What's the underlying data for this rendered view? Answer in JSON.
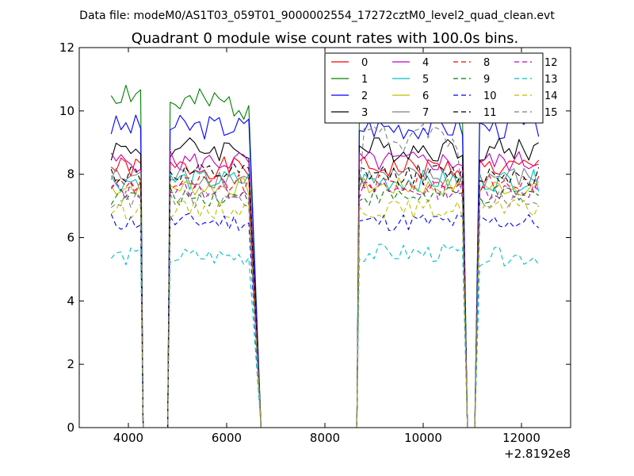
{
  "suptitle": "Data file: modeM0/AS1T03_059T01_9000002554_17272cztM0_level2_quad_clean.evt",
  "chart_data": {
    "type": "line",
    "title": "Quadrant 0 module wise count rates with 100.0s bins.",
    "xlabel": "",
    "ylabel": "",
    "x_offset_label": "+2.8192e8",
    "xlim": [
      3000,
      13000
    ],
    "ylim": [
      0,
      12
    ],
    "xticks": [
      4000,
      6000,
      8000,
      10000,
      12000
    ],
    "xtick_labels": [
      "4000",
      "6000",
      "8000",
      "10000",
      "12000"
    ],
    "yticks": [
      0,
      2,
      4,
      6,
      8,
      10,
      12
    ],
    "ytick_labels": [
      "0",
      "2",
      "4",
      "6",
      "8",
      "10",
      "12"
    ],
    "legend_position": "top-right",
    "legend_columns": 4,
    "segments": [
      [
        3650,
        4250
      ],
      [
        4850,
        6500
      ],
      [
        8700,
        10800
      ],
      [
        11150,
        12400
      ]
    ],
    "gap_points": [
      [
        4300,
        0
      ],
      [
        4800,
        0
      ],
      [
        6700,
        0
      ],
      [
        8650,
        0
      ],
      [
        10900,
        0
      ],
      [
        11050,
        0
      ]
    ],
    "series": [
      {
        "name": "0",
        "color": "#ff0000",
        "dash": "solid",
        "mean": 8.2,
        "amp": 0.35
      },
      {
        "name": "1",
        "color": "#008000",
        "dash": "solid",
        "mean": 10.2,
        "amp": 0.5
      },
      {
        "name": "2",
        "color": "#0000ff",
        "dash": "solid",
        "mean": 9.5,
        "amp": 0.4
      },
      {
        "name": "3",
        "color": "#000000",
        "dash": "solid",
        "mean": 8.8,
        "amp": 0.4
      },
      {
        "name": "4",
        "color": "#bf00bf",
        "dash": "solid",
        "mean": 8.4,
        "amp": 0.35
      },
      {
        "name": "5",
        "color": "#00bfbf",
        "dash": "solid",
        "mean": 7.8,
        "amp": 0.35
      },
      {
        "name": "6",
        "color": "#bfbf00",
        "dash": "solid",
        "mean": 7.6,
        "amp": 0.3
      },
      {
        "name": "7",
        "color": "#808080",
        "dash": "solid",
        "mean": 7.9,
        "amp": 0.35
      },
      {
        "name": "8",
        "color": "#ff0000",
        "dash": "dashed",
        "mean": 7.7,
        "amp": 0.3
      },
      {
        "name": "9",
        "color": "#008000",
        "dash": "dashed",
        "mean": 7.3,
        "amp": 0.3
      },
      {
        "name": "10",
        "color": "#0000ff",
        "dash": "dashed",
        "mean": 6.5,
        "amp": 0.3
      },
      {
        "name": "11",
        "color": "#000000",
        "dash": "dashed",
        "mean": 8.0,
        "amp": 0.35
      },
      {
        "name": "12",
        "color": "#bf00bf",
        "dash": "dashed",
        "mean": 7.5,
        "amp": 0.3
      },
      {
        "name": "13",
        "color": "#00bfbf",
        "dash": "dashed",
        "mean": 5.4,
        "amp": 0.3
      },
      {
        "name": "14",
        "color": "#bfbf00",
        "dash": "dashed",
        "mean": 6.9,
        "amp": 0.3
      },
      {
        "name": "15",
        "color": "#808080",
        "dash": "dashed",
        "mean": 7.2,
        "amp": 0.3
      }
    ]
  }
}
